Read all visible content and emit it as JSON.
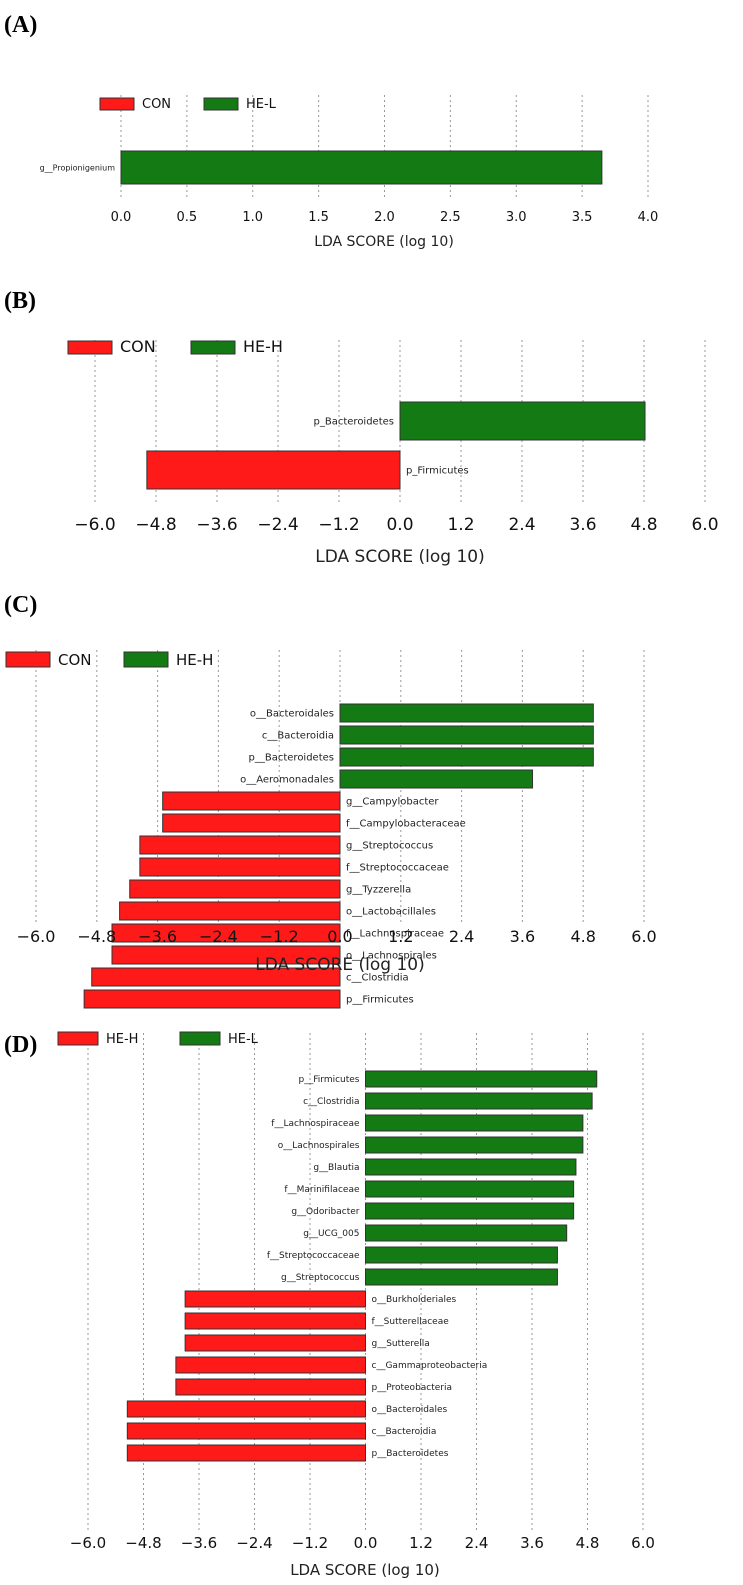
{
  "colors": {
    "negative": "#ff1a1a",
    "positive": "#147a14"
  },
  "chart_data": [
    {
      "panel": "(A)",
      "type": "bar",
      "orientation": "horizontal",
      "title": "",
      "xlabel": "LDA SCORE (log 10)",
      "xlim": [
        0,
        4.0
      ],
      "ticks": [
        "0.0",
        "0.5",
        "1.0",
        "1.5",
        "2.0",
        "2.5",
        "3.0",
        "3.5",
        "4.0"
      ],
      "tick_values": [
        0,
        0.5,
        1.0,
        1.5,
        2.0,
        2.5,
        3.0,
        3.5,
        4.0
      ],
      "legend": [
        {
          "name": "CON",
          "color": "#ff1a1a"
        },
        {
          "name": "HE-L",
          "color": "#147a14"
        }
      ],
      "bars": [
        {
          "label": "g__Propionigenium",
          "value": 3.65
        }
      ]
    },
    {
      "panel": "(B)",
      "type": "bar",
      "orientation": "horizontal",
      "title": "",
      "xlabel": "LDA SCORE (log 10)",
      "xlim": [
        -6.0,
        6.0
      ],
      "ticks": [
        "−6.0",
        "−4.8",
        "−3.6",
        "−2.4",
        "−1.2",
        "0.0",
        "1.2",
        "2.4",
        "3.6",
        "4.8",
        "6.0"
      ],
      "tick_values": [
        -6.0,
        -4.8,
        -3.6,
        -2.4,
        -1.2,
        0,
        1.2,
        2.4,
        3.6,
        4.8,
        6.0
      ],
      "legend": [
        {
          "name": "CON",
          "color": "#ff1a1a"
        },
        {
          "name": "HE-H",
          "color": "#147a14"
        }
      ],
      "bars": [
        {
          "label": "p_Bacteroidetes",
          "value": 4.82
        },
        {
          "label": "p_Firmicutes",
          "value": -4.98
        }
      ]
    },
    {
      "panel": "(C)",
      "type": "bar",
      "orientation": "horizontal",
      "title": "",
      "xlabel": "LDA SCORE (log 10)",
      "xlim": [
        -6.0,
        6.0
      ],
      "ticks": [
        "−6.0",
        "−4.8",
        "−3.6",
        "−2.4",
        "−1.2",
        "0.0",
        "1.2",
        "2.4",
        "3.6",
        "4.8",
        "6.0"
      ],
      "tick_values": [
        -6.0,
        -4.8,
        -3.6,
        -2.4,
        -1.2,
        0,
        1.2,
        2.4,
        3.6,
        4.8,
        6.0
      ],
      "legend": [
        {
          "name": "CON",
          "color": "#ff1a1a"
        },
        {
          "name": "HE-H",
          "color": "#147a14"
        }
      ],
      "bars": [
        {
          "label": "o__Bacteroidales",
          "value": 5.0
        },
        {
          "label": "c__Bacteroidia",
          "value": 5.0
        },
        {
          "label": "p__Bacteroidetes",
          "value": 5.0
        },
        {
          "label": "o__Aeromonadales",
          "value": 3.8
        },
        {
          "label": "g__Campylobacter",
          "value": -3.5
        },
        {
          "label": "f__Campylobacteraceae",
          "value": -3.5
        },
        {
          "label": "g__Streptococcus",
          "value": -3.95
        },
        {
          "label": "f__Streptococcaceae",
          "value": -3.95
        },
        {
          "label": "g__Tyzzerella",
          "value": -4.15
        },
        {
          "label": "o__Lactobacillales",
          "value": -4.35
        },
        {
          "label": "f__Lachnospiraceae",
          "value": -4.5
        },
        {
          "label": "o__Lachnospirales",
          "value": -4.5
        },
        {
          "label": "c__Clostridia",
          "value": -4.9
        },
        {
          "label": "p__Firmicutes",
          "value": -5.05
        }
      ]
    },
    {
      "panel": "(D)",
      "type": "bar",
      "orientation": "horizontal",
      "title": "",
      "xlabel": "LDA SCORE (log 10)",
      "xlim": [
        -6.0,
        6.0
      ],
      "ticks": [
        "−6.0",
        "−4.8",
        "−3.6",
        "−2.4",
        "−1.2",
        "0.0",
        "1.2",
        "2.4",
        "3.6",
        "4.8",
        "6.0"
      ],
      "tick_values": [
        -6.0,
        -4.8,
        -3.6,
        -2.4,
        -1.2,
        0,
        1.2,
        2.4,
        3.6,
        4.8,
        6.0
      ],
      "legend": [
        {
          "name": "HE-H",
          "color": "#ff1a1a"
        },
        {
          "name": "HE-L",
          "color": "#147a14"
        }
      ],
      "bars": [
        {
          "label": "p__Firmicutes",
          "value": 5.0
        },
        {
          "label": "c__Clostridia",
          "value": 4.9
        },
        {
          "label": "f__Lachnospiraceae",
          "value": 4.7
        },
        {
          "label": "o__Lachnospirales",
          "value": 4.7
        },
        {
          "label": "g__Blautia",
          "value": 4.55
        },
        {
          "label": "f__Marinifilaceae",
          "value": 4.5
        },
        {
          "label": "g__Odoribacter",
          "value": 4.5
        },
        {
          "label": "g__UCG_005",
          "value": 4.35
        },
        {
          "label": "f__Streptococcaceae",
          "value": 4.15
        },
        {
          "label": "g__Streptococcus",
          "value": 4.15
        },
        {
          "label": "o__Burkholderiales",
          "value": -3.9
        },
        {
          "label": "f__Sutterellaceae",
          "value": -3.9
        },
        {
          "label": "g__Sutterella",
          "value": -3.9
        },
        {
          "label": "c__Gammaproteobacteria",
          "value": -4.1
        },
        {
          "label": "p__Proteobacteria",
          "value": -4.1
        },
        {
          "label": "o__Bacteroidales",
          "value": -5.15
        },
        {
          "label": "c__Bacteroidia",
          "value": -5.15
        },
        {
          "label": "p__Bacteroidetes",
          "value": -5.15
        }
      ]
    }
  ]
}
